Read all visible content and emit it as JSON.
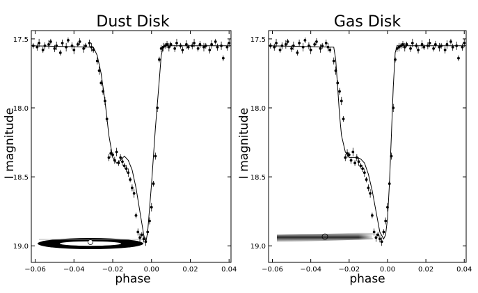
{
  "chart_data": [
    {
      "type": "scatter",
      "title": "Dust Disk",
      "xlabel": "phase",
      "ylabel": "I magnitude",
      "xlim": [
        -0.062,
        0.041
      ],
      "ylim": [
        19.12,
        17.44
      ],
      "y_inverted": true,
      "xticks": [
        -0.06,
        -0.04,
        -0.02,
        0.0,
        0.02,
        0.04
      ],
      "xtick_labels": [
        "−0.06",
        "−0.04",
        "−0.02",
        "0.00",
        "0.02",
        "0.04"
      ],
      "yticks": [
        17.5,
        18.0,
        18.5,
        19.0
      ],
      "ytick_labels": [
        "17.5",
        "18.0",
        "18.5",
        "19.0"
      ],
      "grid": false,
      "series": [
        {
          "kind": "observations",
          "x": [
            -0.061,
            -0.059,
            -0.058,
            -0.056,
            -0.055,
            -0.053,
            -0.052,
            -0.05,
            -0.049,
            -0.047,
            -0.046,
            -0.044,
            -0.043,
            -0.041,
            -0.04,
            -0.038,
            -0.037,
            -0.035,
            -0.034,
            -0.032,
            -0.031,
            -0.03,
            -0.028,
            -0.027,
            -0.026,
            -0.025,
            -0.024,
            -0.023,
            -0.022,
            -0.021,
            -0.02,
            -0.019,
            -0.018,
            -0.017,
            -0.016,
            -0.015,
            -0.014,
            -0.013,
            -0.012,
            -0.011,
            -0.01,
            -0.009,
            -0.008,
            -0.007,
            -0.006,
            -0.005,
            -0.004,
            -0.003,
            -0.002,
            -0.001,
            0.0,
            0.001,
            0.002,
            0.003,
            0.004,
            0.005,
            0.006,
            0.007,
            0.008,
            0.009,
            0.01,
            0.012,
            0.013,
            0.015,
            0.016,
            0.018,
            0.019,
            0.021,
            0.022,
            0.024,
            0.025,
            0.027,
            0.028,
            0.03,
            0.031,
            0.033,
            0.034,
            0.036,
            0.037,
            0.039,
            0.04
          ],
          "y": [
            17.55,
            17.56,
            17.53,
            17.58,
            17.55,
            17.54,
            17.52,
            17.57,
            17.55,
            17.6,
            17.53,
            17.56,
            17.51,
            17.55,
            17.58,
            17.54,
            17.52,
            17.57,
            17.55,
            17.53,
            17.56,
            17.58,
            17.66,
            17.73,
            17.82,
            17.88,
            17.95,
            18.08,
            18.36,
            18.33,
            18.34,
            18.38,
            18.32,
            18.4,
            18.36,
            18.39,
            18.42,
            18.44,
            18.47,
            18.52,
            18.58,
            18.62,
            18.78,
            18.9,
            18.94,
            18.92,
            18.95,
            18.97,
            18.9,
            18.82,
            18.72,
            18.55,
            18.35,
            18.0,
            17.65,
            17.57,
            17.56,
            17.55,
            17.54,
            17.56,
            17.54,
            17.57,
            17.53,
            17.55,
            17.58,
            17.54,
            17.56,
            17.55,
            17.53,
            17.57,
            17.54,
            17.56,
            17.55,
            17.58,
            17.54,
            17.52,
            17.56,
            17.55,
            17.64,
            17.56,
            17.53
          ]
        },
        {
          "kind": "model",
          "x": [
            -0.062,
            -0.03,
            -0.028,
            -0.026,
            -0.024,
            -0.022,
            -0.02,
            -0.018,
            -0.016,
            -0.014,
            -0.012,
            -0.01,
            -0.008,
            -0.006,
            -0.004,
            -0.003,
            -0.002,
            0.0,
            0.002,
            0.004,
            0.005,
            0.006,
            0.007,
            0.041
          ],
          "y": [
            17.55,
            17.56,
            17.62,
            17.75,
            17.95,
            18.2,
            18.36,
            18.4,
            18.38,
            18.35,
            18.38,
            18.45,
            18.58,
            18.75,
            18.92,
            18.98,
            18.9,
            18.55,
            18.15,
            17.8,
            17.62,
            17.56,
            17.55,
            17.55
          ]
        }
      ],
      "inset": "edge-on dust disk silhouette"
    },
    {
      "type": "scatter",
      "title": "Gas Disk",
      "xlabel": "phase",
      "ylabel": "I magnitude",
      "xlim": [
        -0.062,
        0.041
      ],
      "ylim": [
        19.12,
        17.44
      ],
      "y_inverted": true,
      "xticks": [
        -0.06,
        -0.04,
        -0.02,
        0.0,
        0.02,
        0.04
      ],
      "xtick_labels": [
        "−0.06",
        "−0.04",
        "−0.02",
        "0.00",
        "0.02",
        "0.04"
      ],
      "yticks": [
        17.5,
        18.0,
        18.5,
        19.0
      ],
      "ytick_labels": [
        "17.5",
        "18.0",
        "18.5",
        "19.0"
      ],
      "grid": false,
      "series": [
        {
          "kind": "observations",
          "x": [
            -0.061,
            -0.059,
            -0.058,
            -0.056,
            -0.055,
            -0.053,
            -0.052,
            -0.05,
            -0.049,
            -0.047,
            -0.046,
            -0.044,
            -0.043,
            -0.041,
            -0.04,
            -0.038,
            -0.037,
            -0.035,
            -0.034,
            -0.032,
            -0.031,
            -0.03,
            -0.028,
            -0.027,
            -0.026,
            -0.025,
            -0.024,
            -0.023,
            -0.022,
            -0.021,
            -0.02,
            -0.019,
            -0.018,
            -0.017,
            -0.016,
            -0.015,
            -0.014,
            -0.013,
            -0.012,
            -0.011,
            -0.01,
            -0.009,
            -0.008,
            -0.007,
            -0.006,
            -0.005,
            -0.004,
            -0.003,
            -0.002,
            -0.001,
            0.0,
            0.001,
            0.002,
            0.003,
            0.004,
            0.005,
            0.006,
            0.007,
            0.008,
            0.009,
            0.01,
            0.012,
            0.013,
            0.015,
            0.016,
            0.018,
            0.019,
            0.021,
            0.022,
            0.024,
            0.025,
            0.027,
            0.028,
            0.03,
            0.031,
            0.033,
            0.034,
            0.036,
            0.037,
            0.039,
            0.04
          ],
          "y": [
            17.55,
            17.56,
            17.53,
            17.58,
            17.55,
            17.54,
            17.52,
            17.57,
            17.55,
            17.6,
            17.53,
            17.56,
            17.51,
            17.55,
            17.58,
            17.54,
            17.52,
            17.57,
            17.55,
            17.53,
            17.56,
            17.58,
            17.66,
            17.73,
            17.82,
            17.88,
            17.95,
            18.08,
            18.36,
            18.33,
            18.34,
            18.38,
            18.32,
            18.4,
            18.36,
            18.39,
            18.42,
            18.44,
            18.47,
            18.52,
            18.58,
            18.62,
            18.78,
            18.9,
            18.94,
            18.92,
            18.95,
            18.97,
            18.9,
            18.82,
            18.72,
            18.55,
            18.35,
            18.0,
            17.65,
            17.57,
            17.56,
            17.55,
            17.54,
            17.56,
            17.54,
            17.57,
            17.53,
            17.55,
            17.58,
            17.54,
            17.56,
            17.55,
            17.53,
            17.57,
            17.54,
            17.56,
            17.55,
            17.58,
            17.54,
            17.52,
            17.56,
            17.55,
            17.64,
            17.56,
            17.53
          ]
        },
        {
          "kind": "model",
          "x": [
            -0.062,
            -0.028,
            -0.027,
            -0.026,
            -0.025,
            -0.024,
            -0.022,
            -0.02,
            -0.018,
            -0.016,
            -0.014,
            -0.012,
            -0.01,
            -0.008,
            -0.006,
            -0.004,
            -0.002,
            -0.001,
            0.0,
            0.001,
            0.002,
            0.003,
            0.004,
            0.005,
            0.041
          ],
          "y": [
            17.55,
            17.56,
            17.65,
            17.85,
            18.05,
            18.2,
            18.32,
            18.36,
            18.36,
            18.36,
            18.37,
            18.4,
            18.48,
            18.6,
            18.75,
            18.9,
            18.95,
            18.92,
            18.8,
            18.55,
            18.2,
            17.85,
            17.6,
            17.55,
            17.55
          ]
        }
      ],
      "inset": "edge-on gas disk silhouette"
    }
  ]
}
